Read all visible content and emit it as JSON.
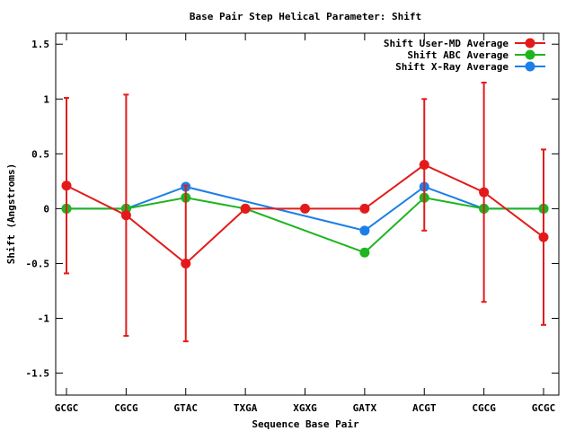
{
  "chart_data": {
    "type": "line",
    "title": "Base Pair Step Helical Parameter: Shift",
    "xlabel": "Sequence Base Pair",
    "ylabel": "Shift (Angstroms)",
    "categories": [
      "GCGC",
      "CGCG",
      "GTAC",
      "TXGA",
      "XGXG",
      "GATX",
      "ACGT",
      "CGCG",
      "GCGC"
    ],
    "ylim": [
      -1.7,
      1.6
    ],
    "yticks": [
      -1.5,
      -1,
      -0.5,
      0,
      0.5,
      1,
      1.5
    ],
    "ytick_labels": [
      "-1.5",
      "-1",
      "-0.5",
      "0",
      "0.5",
      "1",
      "1.5"
    ],
    "legend_position": "top-right",
    "grid": false,
    "series": [
      {
        "name": "Shift User-MD Average",
        "color": "#e41a1a",
        "points": [
          {
            "x": 0,
            "y": 0.21,
            "err": 0.8
          },
          {
            "x": 1,
            "y": -0.06,
            "err": 1.1
          },
          {
            "x": 2,
            "y": -0.5,
            "err": 0.71
          },
          {
            "x": 3,
            "y": 0.0,
            "err": 0
          },
          {
            "x": 4,
            "y": 0.0,
            "err": 0
          },
          {
            "x": 5,
            "y": 0.0,
            "err": 0
          },
          {
            "x": 6,
            "y": 0.4,
            "err": 0.6
          },
          {
            "x": 7,
            "y": 0.15,
            "err": 1.0
          },
          {
            "x": 8,
            "y": -0.26,
            "err": 0.8
          }
        ]
      },
      {
        "name": "Shift ABC Average",
        "color": "#1fb51f",
        "points": [
          {
            "x": 0,
            "y": 0.0
          },
          {
            "x": 1,
            "y": 0.0
          },
          {
            "x": 2,
            "y": 0.1
          },
          {
            "x": 3,
            "y": 0.0
          },
          {
            "x": 5,
            "y": -0.4
          },
          {
            "x": 6,
            "y": 0.1
          },
          {
            "x": 7,
            "y": 0.0
          },
          {
            "x": 8,
            "y": 0.0
          }
        ]
      },
      {
        "name": "Shift X-Ray Average",
        "color": "#1c7fe8",
        "points": [
          {
            "x": 0,
            "y": 0.0
          },
          {
            "x": 1,
            "y": 0.0
          },
          {
            "x": 2,
            "y": 0.2
          },
          {
            "x": 5,
            "y": -0.2
          },
          {
            "x": 6,
            "y": 0.2
          },
          {
            "x": 7,
            "y": 0.0
          },
          {
            "x": 8,
            "y": 0.0
          }
        ]
      }
    ]
  }
}
